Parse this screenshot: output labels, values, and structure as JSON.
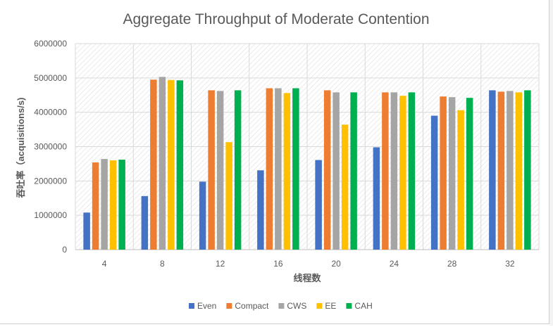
{
  "chart_data": {
    "type": "bar",
    "title": "Aggregate Throughput of Moderate Contention",
    "xlabel": "线程数",
    "ylabel": "吞吐率（acquisitions/s)",
    "ylim": [
      0,
      6000000
    ],
    "yticks": [
      "0",
      "1000000",
      "2000000",
      "3000000",
      "4000000",
      "5000000",
      "6000000"
    ],
    "categories": [
      "4",
      "8",
      "12",
      "16",
      "20",
      "24",
      "28",
      "32"
    ],
    "legend_position": "bottom",
    "grid": true,
    "series": [
      {
        "name": "Even",
        "color": "#4472C4",
        "values": [
          1080000,
          1560000,
          1980000,
          2310000,
          2610000,
          2980000,
          3900000,
          4640000
        ]
      },
      {
        "name": "Compact",
        "color": "#ED7D31",
        "values": [
          2540000,
          4950000,
          4640000,
          4700000,
          4640000,
          4580000,
          4460000,
          4600000
        ]
      },
      {
        "name": "CWS",
        "color": "#A5A5A5",
        "values": [
          2640000,
          5030000,
          4620000,
          4700000,
          4580000,
          4580000,
          4440000,
          4620000
        ]
      },
      {
        "name": "EE",
        "color": "#FFC000",
        "values": [
          2600000,
          4940000,
          3130000,
          4560000,
          3640000,
          4480000,
          4060000,
          4580000
        ]
      },
      {
        "name": "CAH",
        "color": "#00B050",
        "values": [
          2620000,
          4930000,
          4640000,
          4700000,
          4580000,
          4580000,
          4420000,
          4640000
        ]
      }
    ]
  }
}
